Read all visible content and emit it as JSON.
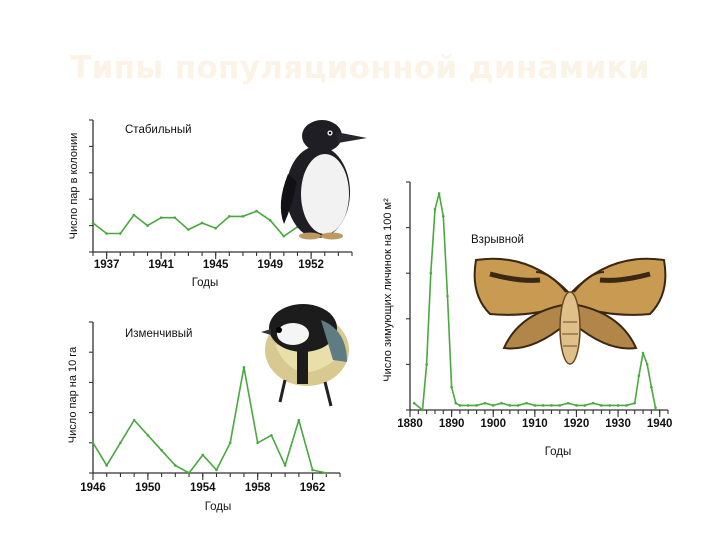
{
  "slide": {
    "title": "Типы популяционной динамики"
  },
  "colors": {
    "series": "#4aa83f",
    "axis": "#333333",
    "title": "#fbf3e6"
  },
  "illustrations": [
    "penguin",
    "great-tit",
    "moth"
  ],
  "chart_data": [
    {
      "id": "stable",
      "type": "line",
      "chart_label": "Стабильный",
      "xlabel": "Годы",
      "ylabel": "Число пар в колонии",
      "xlim": [
        1936,
        1955
      ],
      "ylim": [
        0,
        10
      ],
      "xticks": [
        1937,
        1941,
        1945,
        1949,
        1952
      ],
      "x": [
        1936,
        1937,
        1938,
        1939,
        1940,
        1941,
        1942,
        1943,
        1944,
        1945,
        1946,
        1947,
        1948,
        1949,
        1950,
        1951,
        1952,
        1953
      ],
      "values": [
        2.2,
        1.4,
        1.4,
        2.8,
        2.0,
        2.6,
        2.6,
        1.7,
        2.2,
        1.8,
        2.7,
        2.7,
        3.1,
        2.4,
        1.2,
        1.9,
        1.6,
        1.5
      ],
      "grid": false
    },
    {
      "id": "variable",
      "type": "line",
      "chart_label": "Изменчивый",
      "xlabel": "Годы",
      "ylabel": "Число пар на 10 га",
      "xlim": [
        1946,
        1964
      ],
      "ylim": [
        0,
        10
      ],
      "xticks": [
        1946,
        1950,
        1954,
        1958,
        1962
      ],
      "x": [
        1946,
        1947,
        1948,
        1949,
        1950,
        1951,
        1952,
        1953,
        1954,
        1955,
        1956,
        1957,
        1958,
        1959,
        1960,
        1961,
        1962,
        1963
      ],
      "values": [
        2.0,
        0.5,
        2.0,
        3.5,
        2.5,
        1.5,
        0.5,
        0.0,
        1.2,
        0.2,
        2.0,
        7.0,
        2.0,
        2.5,
        0.5,
        3.5,
        0.2,
        0.0
      ],
      "grid": false
    },
    {
      "id": "explosive",
      "type": "line",
      "chart_label": "Взрывной",
      "xlabel": "Годы",
      "ylabel": "Число зимующих личинок на 100 м²",
      "xlim": [
        1880,
        1942
      ],
      "ylim": [
        0,
        100
      ],
      "xticks": [
        1880,
        1890,
        1900,
        1910,
        1920,
        1930,
        1940
      ],
      "x": [
        1881,
        1883,
        1884,
        1885,
        1886,
        1887,
        1888,
        1889,
        1890,
        1891,
        1892,
        1894,
        1896,
        1898,
        1900,
        1902,
        1904,
        1906,
        1908,
        1910,
        1912,
        1914,
        1916,
        1918,
        1920,
        1922,
        1924,
        1926,
        1928,
        1930,
        1932,
        1934,
        1935,
        1936,
        1937,
        1938,
        1939
      ],
      "values": [
        3,
        0,
        20,
        60,
        88,
        95,
        85,
        50,
        10,
        3,
        2,
        2,
        2,
        3,
        2,
        3,
        2,
        2,
        3,
        2,
        2,
        2,
        2,
        3,
        2,
        2,
        3,
        2,
        2,
        2,
        2,
        3,
        15,
        25,
        20,
        10,
        1
      ],
      "grid": false
    }
  ]
}
